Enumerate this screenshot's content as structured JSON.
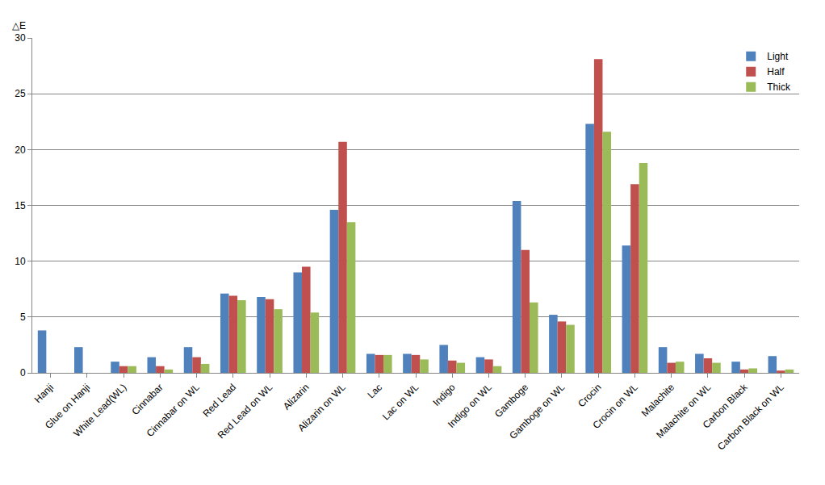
{
  "chart_data": {
    "type": "bar",
    "ylabel": "△E",
    "categories": [
      "Hanji",
      "Glue on Hanji",
      "White Lead(WL)",
      "Cinnabar",
      "Cinnabar on WL",
      "Red Lead",
      "Red Lead on WL",
      "Alizarin",
      "Alizarin on WL",
      "Lac",
      "Lac on WL",
      "Indigo",
      "Indigo on WL",
      "Gamboge",
      "Gamboge on WL",
      "Crocin",
      "Crocin on WL",
      "Malachite",
      "Malachite on WL",
      "Carbon Black",
      "Carbon Black on WL"
    ],
    "series": [
      {
        "name": "Light",
        "color": "#4f81bd",
        "values": [
          3.8,
          2.3,
          1.0,
          1.4,
          2.3,
          7.1,
          6.8,
          9.0,
          14.6,
          1.7,
          1.7,
          2.5,
          1.4,
          15.4,
          5.2,
          22.3,
          11.4,
          2.3,
          1.7,
          1.0,
          1.5
        ]
      },
      {
        "name": "Half",
        "color": "#c0504d",
        "values": [
          null,
          null,
          0.6,
          0.6,
          1.4,
          6.9,
          6.6,
          9.5,
          20.7,
          1.6,
          1.6,
          1.1,
          1.2,
          11.0,
          4.6,
          28.1,
          16.9,
          0.9,
          1.3,
          0.3,
          0.2
        ]
      },
      {
        "name": "Thick",
        "color": "#9bbb59",
        "values": [
          null,
          null,
          0.6,
          0.3,
          0.8,
          6.5,
          5.7,
          5.4,
          13.5,
          1.6,
          1.2,
          0.9,
          0.6,
          6.3,
          4.3,
          21.6,
          18.8,
          1.0,
          0.9,
          0.4,
          0.3
        ]
      }
    ],
    "ylim": [
      0,
      30
    ],
    "yticks": [
      0,
      5,
      10,
      15,
      20,
      25,
      30
    ],
    "grid": true,
    "legend": "top-right"
  }
}
